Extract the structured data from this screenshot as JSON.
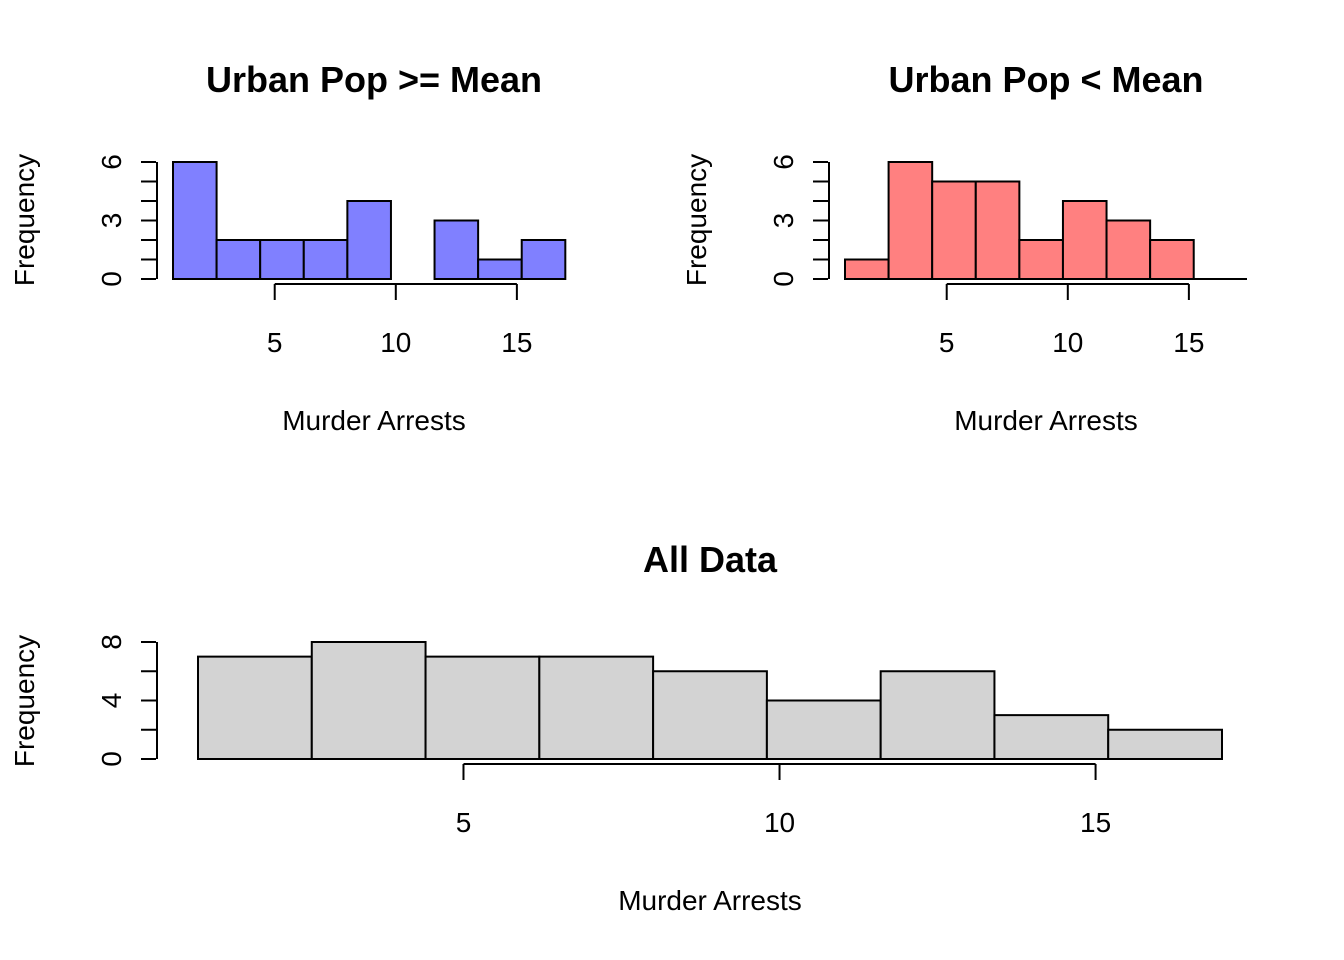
{
  "chart_data": [
    {
      "id": "urban-high",
      "type": "bar",
      "title": "Urban Pop >= Mean",
      "xlabel": "Murder Arrests",
      "ylabel": "Frequency",
      "color": "#8080ff",
      "bins": [
        [
          0.8,
          2.6
        ],
        [
          2.6,
          4.4
        ],
        [
          4.4,
          6.2
        ],
        [
          6.2,
          8.0
        ],
        [
          8.0,
          9.8
        ],
        [
          9.8,
          11.6
        ],
        [
          11.6,
          13.4
        ],
        [
          13.4,
          15.2
        ],
        [
          15.2,
          17.0
        ]
      ],
      "values": [
        6,
        2,
        2,
        2,
        4,
        0,
        3,
        1,
        2
      ],
      "xlim": [
        0.8,
        17.4
      ],
      "ylim": [
        0,
        6
      ],
      "x_ticks": [
        5,
        10,
        15
      ],
      "y_tick_labels": [
        0,
        3,
        6
      ],
      "y_minor_ticks": [
        0,
        1,
        2,
        3,
        4,
        5,
        6
      ],
      "baseline": "partial"
    },
    {
      "id": "urban-low",
      "type": "bar",
      "title": "Urban Pop < Mean",
      "xlabel": "Murder Arrests",
      "ylabel": "Frequency",
      "color": "#ff8080",
      "bins": [
        [
          0.8,
          2.6
        ],
        [
          2.6,
          4.4
        ],
        [
          4.4,
          6.2
        ],
        [
          6.2,
          8.0
        ],
        [
          8.0,
          9.8
        ],
        [
          9.8,
          11.6
        ],
        [
          11.6,
          13.4
        ],
        [
          13.4,
          15.2
        ]
      ],
      "values": [
        1,
        6,
        5,
        5,
        2,
        4,
        3,
        2
      ],
      "xlim": [
        0.8,
        17.4
      ],
      "ylim": [
        0,
        6
      ],
      "x_ticks": [
        5,
        10,
        15
      ],
      "y_tick_labels": [
        0,
        3,
        6
      ],
      "y_minor_ticks": [
        0,
        1,
        2,
        3,
        4,
        5,
        6
      ],
      "baseline": "full"
    },
    {
      "id": "all-data",
      "type": "bar",
      "title": "All Data",
      "xlabel": "Murder Arrests",
      "ylabel": "Frequency",
      "color": "#d3d3d3",
      "bins": [
        [
          0.8,
          2.6
        ],
        [
          2.6,
          4.4
        ],
        [
          4.4,
          6.2
        ],
        [
          6.2,
          8.0
        ],
        [
          8.0,
          9.8
        ],
        [
          9.8,
          11.6
        ],
        [
          11.6,
          13.4
        ],
        [
          13.4,
          15.2
        ],
        [
          15.2,
          17.0
        ]
      ],
      "values": [
        7,
        8,
        7,
        7,
        6,
        4,
        6,
        3,
        2
      ],
      "xlim": [
        0.8,
        17.0
      ],
      "ylim": [
        0,
        8
      ],
      "x_ticks": [
        5,
        10,
        15
      ],
      "y_tick_labels": [
        0,
        4,
        8
      ],
      "y_minor_ticks": [
        0,
        2,
        4,
        6,
        8
      ],
      "baseline": "none"
    }
  ]
}
